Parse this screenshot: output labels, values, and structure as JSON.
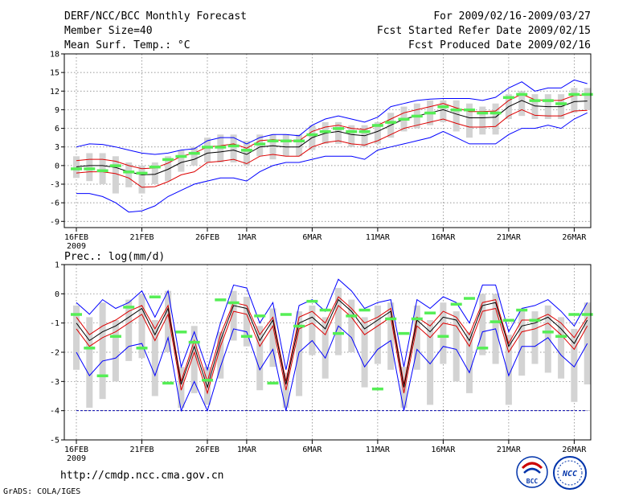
{
  "header": {
    "title": "DERF/NCC/BCC Monthly Forecast",
    "member_size": "Member Size=40",
    "variable": "Mean Surf. Temp.: °C",
    "forecast_period": "For 2009/02/16-2009/03/27",
    "refer_date": "Fcst Started Refer Date 2009/02/15",
    "produced_date": "Fcst Produced Date 2009/02/16"
  },
  "footer": {
    "url": "http://cmdp.ncc.cma.gov.cn",
    "grads": "GrADS: COLA/IGES",
    "logo_bcc": "BCC",
    "logo_ncc": "NCC"
  },
  "colors": {
    "envelope": "#0000ff",
    "mean": "#000000",
    "spread": "#dd0000",
    "box": "#d3d3d3",
    "marker": "#55ee55",
    "baseline": "#0000aa"
  },
  "chart_data": [
    {
      "type": "line",
      "title": "Mean Surf. Temp.: °C",
      "x_labels": [
        {
          "day": 0,
          "label": "16FEB"
        },
        {
          "day": 5,
          "label": "21FEB"
        },
        {
          "day": 10,
          "label": "26FEB"
        },
        {
          "day": 13,
          "label": "1MAR"
        },
        {
          "day": 18,
          "label": "6MAR"
        },
        {
          "day": 23,
          "label": "11MAR"
        },
        {
          "day": 28,
          "label": "16MAR"
        },
        {
          "day": 33,
          "label": "21MAR"
        },
        {
          "day": 38,
          "label": "26MAR"
        }
      ],
      "year_label": "2009",
      "ylim": [
        -10,
        18
      ],
      "yticks": [
        "-9",
        "-6",
        "-3",
        "0",
        "3",
        "6",
        "9",
        "12",
        "15",
        "18"
      ],
      "grid": true,
      "days": 40,
      "series": [
        {
          "name": "ensemble max",
          "values": [
            3.0,
            3.5,
            3.4,
            3.0,
            2.5,
            2.0,
            1.8,
            2.0,
            2.5,
            2.7,
            4.0,
            4.5,
            4.5,
            3.5,
            4.5,
            5.0,
            5.0,
            4.8,
            6.5,
            7.5,
            8.0,
            7.5,
            7.0,
            7.8,
            9.5,
            10.0,
            10.5,
            10.7,
            10.8,
            10.8,
            10.8,
            10.5,
            11.0,
            12.5,
            13.5,
            12.0,
            12.5,
            12.5,
            13.8,
            13.2
          ]
        },
        {
          "name": "ensemble mean",
          "values": [
            -0.2,
            0.0,
            0.0,
            -0.3,
            -1.0,
            -1.5,
            -1.4,
            -0.6,
            0.5,
            1.0,
            2.0,
            2.2,
            2.5,
            1.8,
            3.0,
            3.2,
            3.0,
            3.0,
            4.5,
            5.2,
            5.5,
            5.0,
            4.8,
            5.5,
            6.5,
            7.5,
            8.0,
            8.5,
            9.0,
            8.3,
            7.7,
            7.7,
            7.8,
            9.5,
            10.5,
            9.6,
            9.5,
            9.5,
            10.3,
            10.4
          ]
        },
        {
          "name": "mean + spread",
          "values": [
            0.8,
            1.0,
            1.0,
            0.7,
            0.0,
            -0.5,
            -0.4,
            0.4,
            1.5,
            2.0,
            3.0,
            3.2,
            3.5,
            2.8,
            4.0,
            4.2,
            4.0,
            4.0,
            5.5,
            6.2,
            6.5,
            6.0,
            5.8,
            6.5,
            7.5,
            8.5,
            9.0,
            9.5,
            10.0,
            9.3,
            8.7,
            8.7,
            8.8,
            10.5,
            11.5,
            10.6,
            10.5,
            10.5,
            11.3,
            11.4
          ]
        },
        {
          "name": "mean - spread",
          "values": [
            -1.2,
            -1.0,
            -1.0,
            -1.3,
            -2.0,
            -3.5,
            -3.4,
            -2.6,
            -1.5,
            -1.0,
            0.5,
            0.7,
            1.0,
            0.3,
            1.5,
            1.8,
            1.5,
            1.5,
            3.0,
            3.7,
            4.0,
            3.5,
            3.3,
            4.0,
            5.0,
            6.0,
            6.5,
            7.0,
            7.5,
            6.8,
            6.2,
            6.2,
            6.3,
            8.0,
            9.0,
            8.1,
            8.0,
            8.0,
            8.8,
            8.9
          ]
        },
        {
          "name": "ensemble min",
          "values": [
            -4.5,
            -4.5,
            -5.0,
            -6.0,
            -7.5,
            -7.3,
            -6.5,
            -5.0,
            -4.0,
            -3.0,
            -2.5,
            -2.0,
            -2.0,
            -2.5,
            -1.0,
            0.0,
            0.5,
            0.5,
            1.0,
            1.5,
            1.5,
            1.5,
            1.0,
            2.5,
            3.0,
            3.5,
            4.0,
            4.5,
            5.5,
            4.5,
            3.5,
            3.5,
            3.5,
            5.0,
            6.0,
            6.0,
            6.5,
            6.0,
            7.5,
            8.5
          ]
        },
        {
          "name": "box top",
          "values": [
            1.5,
            2.0,
            2.0,
            1.5,
            0.5,
            0.0,
            0.5,
            1.5,
            2.5,
            3.0,
            4.5,
            5.0,
            5.0,
            4.0,
            5.0,
            5.0,
            5.0,
            5.0,
            6.5,
            7.0,
            7.0,
            6.5,
            6.5,
            7.0,
            8.5,
            9.5,
            10.0,
            10.5,
            10.5,
            10.5,
            10.0,
            9.5,
            10.0,
            11.5,
            12.0,
            11.5,
            11.5,
            11.5,
            12.5,
            12.5
          ]
        },
        {
          "name": "box bottom",
          "values": [
            -2.0,
            -2.5,
            -3.0,
            -4.5,
            -3.5,
            -4.5,
            -3.0,
            -2.5,
            -1.0,
            0.0,
            0.5,
            0.5,
            0.5,
            0.0,
            1.5,
            1.0,
            1.5,
            1.5,
            2.5,
            3.5,
            3.5,
            3.0,
            3.0,
            3.5,
            4.5,
            5.5,
            6.0,
            6.5,
            7.0,
            5.5,
            4.5,
            5.0,
            5.0,
            7.5,
            8.0,
            7.5,
            7.5,
            7.5,
            8.5,
            9.0
          ]
        },
        {
          "name": "observed marker",
          "values": [
            -0.5,
            -0.5,
            -0.8,
            0.0,
            -1.0,
            -1.2,
            -0.2,
            1.0,
            1.5,
            2.0,
            3.0,
            3.0,
            3.2,
            2.5,
            3.5,
            4.0,
            4.0,
            4.0,
            5.0,
            5.5,
            6.0,
            5.5,
            5.5,
            6.5,
            7.0,
            7.5,
            8.0,
            8.5,
            9.5,
            9.0,
            9.0,
            8.5,
            8.5,
            11.0,
            11.5,
            10.5,
            10.5,
            10.0,
            11.5,
            11.5
          ]
        }
      ]
    },
    {
      "type": "line",
      "title": "Prec.: log(mm/d)",
      "x_labels": [
        {
          "day": 0,
          "label": "16FEB"
        },
        {
          "day": 5,
          "label": "21FEB"
        },
        {
          "day": 10,
          "label": "26FEB"
        },
        {
          "day": 13,
          "label": "1MAR"
        },
        {
          "day": 18,
          "label": "6MAR"
        },
        {
          "day": 23,
          "label": "11MAR"
        },
        {
          "day": 28,
          "label": "16MAR"
        },
        {
          "day": 33,
          "label": "21MAR"
        },
        {
          "day": 38,
          "label": "26MAR"
        }
      ],
      "year_label": "2009",
      "ylim": [
        -5,
        1
      ],
      "yticks": [
        "-5",
        "-4",
        "-3",
        "-2",
        "-1",
        "0",
        "1"
      ],
      "grid": true,
      "days": 40,
      "baseline": -4,
      "series": [
        {
          "name": "ensemble max",
          "values": [
            -0.3,
            -0.7,
            -0.2,
            -0.5,
            -0.3,
            0.1,
            -0.8,
            0.1,
            -2.5,
            -1.3,
            -2.6,
            -1.0,
            0.3,
            0.2,
            -1.0,
            -0.3,
            -2.6,
            -0.4,
            -0.2,
            -0.6,
            0.5,
            0.1,
            -0.5,
            -0.3,
            -0.2,
            -2.5,
            -0.2,
            -0.5,
            -0.1,
            -0.3,
            -1.0,
            0.3,
            0.3,
            -1.3,
            -0.5,
            -0.4,
            -0.2,
            -0.6,
            -1.1,
            -0.3
          ]
        },
        {
          "name": "ensemble mean",
          "values": [
            -1.0,
            -1.6,
            -1.3,
            -1.1,
            -0.8,
            -0.5,
            -1.4,
            -0.5,
            -3.1,
            -1.8,
            -3.2,
            -1.6,
            -0.4,
            -0.5,
            -1.6,
            -0.9,
            -3.1,
            -1.0,
            -0.8,
            -1.2,
            -0.2,
            -0.6,
            -1.2,
            -0.9,
            -0.6,
            -3.2,
            -0.9,
            -1.3,
            -0.8,
            -0.9,
            -1.6,
            -0.4,
            -0.3,
            -1.8,
            -1.1,
            -1.0,
            -0.8,
            -1.2,
            -1.7,
            -0.9
          ]
        },
        {
          "name": "mean + spread",
          "values": [
            -0.8,
            -1.4,
            -1.1,
            -0.9,
            -0.6,
            -0.4,
            -1.2,
            -0.4,
            -3.0,
            -1.6,
            -3.0,
            -1.4,
            -0.3,
            -0.4,
            -1.4,
            -0.8,
            -3.0,
            -0.8,
            -0.6,
            -1.0,
            -0.1,
            -0.5,
            -1.0,
            -0.8,
            -0.5,
            -3.1,
            -0.8,
            -1.1,
            -0.6,
            -0.8,
            -1.4,
            -0.3,
            -0.2,
            -1.7,
            -0.9,
            -0.9,
            -0.7,
            -1.0,
            -1.5,
            -0.8
          ]
        },
        {
          "name": "mean - spread",
          "values": [
            -1.2,
            -1.8,
            -1.5,
            -1.3,
            -1.0,
            -0.7,
            -1.6,
            -0.7,
            -3.3,
            -2.0,
            -3.4,
            -1.8,
            -0.6,
            -0.7,
            -1.8,
            -1.1,
            -3.3,
            -1.2,
            -1.0,
            -1.4,
            -0.4,
            -0.8,
            -1.4,
            -1.1,
            -0.8,
            -3.4,
            -1.1,
            -1.5,
            -1.0,
            -1.1,
            -1.8,
            -0.6,
            -0.5,
            -2.0,
            -1.3,
            -1.2,
            -1.0,
            -1.4,
            -1.9,
            -1.1
          ]
        },
        {
          "name": "ensemble min",
          "values": [
            -2.0,
            -2.8,
            -2.3,
            -2.2,
            -1.8,
            -1.7,
            -2.8,
            -1.5,
            -4.0,
            -3.0,
            -4.0,
            -2.5,
            -1.2,
            -1.3,
            -2.6,
            -1.9,
            -4.0,
            -2.0,
            -1.6,
            -2.2,
            -1.1,
            -1.5,
            -2.5,
            -1.9,
            -1.6,
            -4.0,
            -1.9,
            -2.4,
            -1.8,
            -1.9,
            -2.7,
            -1.3,
            -1.2,
            -2.8,
            -1.8,
            -1.8,
            -1.5,
            -2.1,
            -2.5,
            -1.7
          ]
        },
        {
          "name": "box top",
          "values": [
            -0.4,
            -0.8,
            -0.3,
            -0.9,
            -0.2,
            0.0,
            -0.9,
            0.1,
            -2.5,
            -1.1,
            -2.5,
            -1.3,
            0.1,
            -0.1,
            -1.1,
            -0.5,
            -2.7,
            -0.6,
            -0.4,
            -0.8,
            0.2,
            -0.2,
            -0.8,
            -0.4,
            -0.3,
            -2.5,
            -0.4,
            -0.9,
            -0.3,
            -0.6,
            -1.3,
            0.0,
            0.0,
            -1.4,
            -0.6,
            -0.6,
            -0.4,
            -0.8,
            -1.2,
            -0.3
          ]
        },
        {
          "name": "box bottom",
          "values": [
            -2.6,
            -3.9,
            -3.6,
            -3.0,
            -2.3,
            -2.2,
            -3.5,
            -2.0,
            -3.9,
            -3.4,
            -3.8,
            -2.9,
            -1.6,
            -1.8,
            -3.3,
            -2.5,
            -3.9,
            -3.5,
            -2.1,
            -2.9,
            -2.1,
            -2.0,
            -3.2,
            -2.4,
            -2.6,
            -3.9,
            -2.6,
            -3.8,
            -2.4,
            -3.0,
            -3.4,
            -2.1,
            -2.4,
            -3.8,
            -2.8,
            -2.4,
            -2.7,
            -2.9,
            -3.7,
            -3.1
          ]
        },
        {
          "name": "observed marker",
          "values": [
            -0.7,
            -1.85,
            -2.8,
            -1.45,
            -0.45,
            -1.85,
            -0.1,
            -3.05,
            -1.3,
            -1.65,
            -2.95,
            -0.2,
            -0.3,
            -1.45,
            -0.75,
            -3.05,
            -0.7,
            -1.1,
            -0.25,
            -0.55,
            -1.35,
            -0.75,
            -0.55,
            -3.25,
            -0.85,
            -1.35,
            -0.85,
            -0.65,
            -1.45,
            -0.35,
            -0.15,
            -1.85,
            -0.95,
            -0.9,
            -0.55,
            -0.9,
            -1.3,
            -1.45,
            -0.7,
            -0.7
          ]
        }
      ]
    }
  ]
}
